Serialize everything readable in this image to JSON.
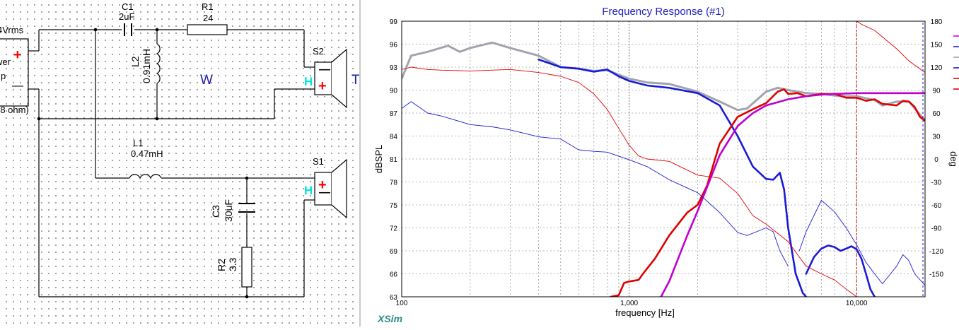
{
  "schematic": {
    "source_label": "4Vrms",
    "amp_label_1": "wer",
    "amp_label_2": "p",
    "amp_load": "(8 ohm)",
    "c1_name": "C1",
    "c1_value": "2uF",
    "r1_name": "R1",
    "r1_value": "24",
    "l2_name": "L2",
    "l2_value": "0.91mH",
    "l1_name": "L1",
    "l1_value": "0.47mH",
    "c3_name": "C3",
    "c3_value": "30uF",
    "r2_name": "R2",
    "r2_value": "3.3",
    "s2_name": "S2",
    "s1_name": "S1",
    "woofer_tag": "W",
    "tweeter_tag": "T",
    "h_label": "H",
    "plus_sign": "+",
    "minus_sign": "—",
    "colors": {
      "wire": "#000000",
      "plus": "#ff0000",
      "h": "#00e5e5",
      "tag": "#1c1ca8"
    }
  },
  "chart_data": {
    "type": "line",
    "title": "Frequency Response (#1)",
    "xlabel": "frequency [Hz]",
    "ylabel": "dBSPL",
    "y2label": "deg",
    "xscale": "log",
    "xlim": [
      100,
      20000
    ],
    "ylim": [
      63,
      99
    ],
    "y2lim": [
      -180,
      180
    ],
    "xticklabels": [
      "100",
      "1,000",
      "10,000"
    ],
    "xtickvalues": [
      100,
      1000,
      10000
    ],
    "yticks": [
      63,
      66,
      69,
      72,
      75,
      78,
      81,
      84,
      87,
      90,
      93,
      96,
      99
    ],
    "y2ticks": [
      -150,
      -120,
      -90,
      -60,
      -30,
      0,
      30,
      60,
      90,
      120,
      150,
      180
    ],
    "grid": true,
    "watermark": "XSim",
    "marker_x": 10000,
    "series": [
      {
        "id": "total_spl",
        "color": "#a0a4b0",
        "width": 3,
        "axis": "left",
        "x": [
          100,
          110,
          130,
          160,
          180,
          200,
          250,
          300,
          400,
          500,
          600,
          700,
          800,
          1000,
          1200,
          1500,
          2000,
          2500,
          3000,
          3300,
          4000,
          4500,
          5000,
          6000,
          7000,
          8000,
          9000,
          10000,
          12000,
          13000,
          15000,
          17000,
          20000
        ],
        "y": [
          91.5,
          94.5,
          95.0,
          95.8,
          95.0,
          95.5,
          96.2,
          95.5,
          94.5,
          93.0,
          92.8,
          92.5,
          92.6,
          91.5,
          91.0,
          90.8,
          89.8,
          88.5,
          87.4,
          87.6,
          89.8,
          90.3,
          90.0,
          89.6,
          89.5,
          89.3,
          89.2,
          89.2,
          88.7,
          88.0,
          88.5,
          88.5,
          86.0
        ]
      },
      {
        "id": "woofer_spl",
        "color": "#1a1ad6",
        "width": 2.6,
        "axis": "left",
        "x": [
          400,
          500,
          600,
          700,
          800,
          900,
          1000,
          1200,
          1500,
          2000,
          2500,
          3000,
          3500,
          4000,
          4300,
          4600,
          4800,
          5000,
          5400,
          5800,
          6000
        ],
        "y": [
          94.0,
          93.0,
          92.8,
          92.4,
          92.7,
          91.8,
          91.2,
          90.6,
          90.3,
          89.6,
          88.0,
          84.0,
          80.0,
          78.4,
          78.3,
          79.2,
          77.0,
          72.0,
          66.0,
          63.5,
          63.0
        ]
      },
      {
        "id": "woofer_spl_hf",
        "color": "#1a1ad6",
        "width": 2.6,
        "axis": "left",
        "x": [
          6000,
          6500,
          7000,
          7500,
          8000,
          8500,
          9000,
          9500,
          10000,
          10500,
          11000,
          11500,
          12000
        ],
        "y": [
          66.0,
          68.2,
          69.3,
          69.7,
          69.5,
          69.0,
          69.3,
          69.6,
          69.2,
          68.0,
          66.0,
          64.0,
          63.0
        ]
      },
      {
        "id": "tweeter_spl",
        "color": "#e00000",
        "width": 2.6,
        "axis": "left",
        "x": [
          830,
          900,
          950,
          1000,
          1100,
          1150,
          1300,
          1500,
          1800,
          2000,
          2200,
          2500,
          3000,
          3500,
          4000,
          4500,
          4800,
          5000,
          5500,
          6000,
          7000,
          8000,
          9000,
          10000,
          11000,
          12000,
          13000,
          15000,
          16000,
          17000,
          18000,
          19000,
          20000
        ],
        "y": [
          63.0,
          63.2,
          64.8,
          65.0,
          65.2,
          66.0,
          68.0,
          71.0,
          74.0,
          75.0,
          77.5,
          83.0,
          86.5,
          87.5,
          88.3,
          89.8,
          90.1,
          89.5,
          89.6,
          89.2,
          89.5,
          89.5,
          89.0,
          89.0,
          88.6,
          88.8,
          88.2,
          88.0,
          88.6,
          88.5,
          87.8,
          86.5,
          86.0
        ]
      },
      {
        "id": "target",
        "color": "#c000d0",
        "width": 2.6,
        "axis": "left",
        "x": [
          1380,
          1500,
          1800,
          2000,
          2500,
          3000,
          3500,
          4000,
          5000,
          6000,
          7000,
          8000,
          10000,
          15000,
          20000
        ],
        "y": [
          63.0,
          65.0,
          71.0,
          74.2,
          81.5,
          85.3,
          87.0,
          88.0,
          88.8,
          89.2,
          89.4,
          89.5,
          89.6,
          89.6,
          89.6
        ]
      },
      {
        "id": "woofer_phase",
        "color": "#1a1ad6",
        "width": 0.9,
        "axis": "right",
        "x": [
          100,
          110,
          130,
          150,
          200,
          250,
          300,
          400,
          500,
          600,
          700,
          800,
          1000,
          1200,
          1500,
          2000,
          2500,
          3000,
          3300,
          4000,
          4300,
          4600,
          5000
        ],
        "y": [
          66,
          75,
          60,
          56,
          45,
          42,
          38,
          29,
          26,
          12,
          10,
          9,
          -1,
          -10,
          -27,
          -44,
          -70,
          -96,
          -100,
          -90,
          -95,
          -120,
          -140
        ]
      },
      {
        "id": "woofer_phase_hf",
        "color": "#1a1ad6",
        "width": 0.9,
        "axis": "right",
        "x": [
          5600,
          6000,
          7000,
          8000,
          9000,
          10000,
          11000,
          12000,
          13000,
          15000,
          16000,
          17000,
          18000,
          20000
        ],
        "y": [
          -120,
          -95,
          -54,
          -69,
          -90,
          -112,
          -135,
          -150,
          -163,
          -140,
          -125,
          -133,
          -150,
          -165
        ]
      },
      {
        "id": "tweeter_phase",
        "color": "#e00000",
        "width": 0.9,
        "axis": "right",
        "x": [
          100,
          110,
          130,
          150,
          200,
          300,
          400,
          500,
          600,
          700,
          800,
          900,
          1000,
          1100,
          1200,
          1500,
          2000,
          2500,
          3000,
          3500,
          4000,
          5000,
          6000,
          7000,
          8000,
          9000,
          10000
        ],
        "y": [
          117,
          120,
          117,
          116,
          115,
          117,
          113,
          108,
          100,
          85,
          65,
          40,
          18,
          4,
          0,
          -3,
          -21,
          -25,
          -45,
          -74,
          -85,
          -108,
          -140,
          -150,
          -158,
          -170,
          -180
        ]
      },
      {
        "id": "tweeter_phase_hf",
        "color": "#e00000",
        "width": 0.9,
        "axis": "right",
        "x": [
          10000,
          10500,
          12000,
          15000,
          17000,
          20000
        ],
        "y": [
          180,
          176,
          168,
          144,
          128,
          113
        ]
      }
    ]
  },
  "legend_colors": [
    "#d400d4",
    "#1a1ad6",
    "#a0a4b0",
    "#1a1ad6",
    "#e00000",
    "#e00000"
  ]
}
